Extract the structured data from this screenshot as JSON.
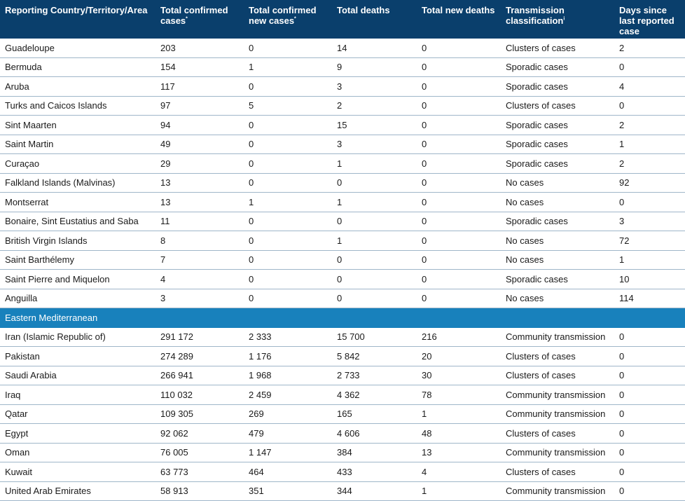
{
  "colors": {
    "header_bg": "#0a3f6c",
    "region_bg": "#1881bc",
    "row_divider": "#9fb6c9"
  },
  "headers": {
    "country": "Reporting Country/Territory/Area",
    "confirmed": "Total confirmed cases",
    "confirmed_mark": "*",
    "new_cases": "Total confirmed new cases",
    "new_cases_mark": "*",
    "deaths": "Total deaths",
    "new_deaths": "Total new deaths",
    "transmission": "Transmission classification",
    "transmission_mark": "i",
    "days": "Days since last reported case"
  },
  "rows": [
    [
      "Guadeloupe",
      "203",
      "0",
      "14",
      "0",
      "Clusters of cases",
      "2"
    ],
    [
      "Bermuda",
      "154",
      "1",
      "9",
      "0",
      "Sporadic cases",
      "0"
    ],
    [
      "Aruba",
      "117",
      "0",
      "3",
      "0",
      "Sporadic cases",
      "4"
    ],
    [
      "Turks and Caicos Islands",
      "97",
      "5",
      "2",
      "0",
      "Clusters of cases",
      "0"
    ],
    [
      "Sint Maarten",
      "94",
      "0",
      "15",
      "0",
      "Sporadic cases",
      "2"
    ],
    [
      "Saint Martin",
      "49",
      "0",
      "3",
      "0",
      "Sporadic cases",
      "1"
    ],
    [
      "Curaçao",
      "29",
      "0",
      "1",
      "0",
      "Sporadic cases",
      "2"
    ],
    [
      "Falkland Islands (Malvinas)",
      "13",
      "0",
      "0",
      "0",
      "No cases",
      "92"
    ],
    [
      "Montserrat",
      "13",
      "1",
      "1",
      "0",
      "No cases",
      "0"
    ],
    [
      "Bonaire, Sint Eustatius and Saba",
      "11",
      "0",
      "0",
      "0",
      "Sporadic cases",
      "3"
    ],
    [
      "British Virgin Islands",
      "8",
      "0",
      "1",
      "0",
      "No cases",
      "72"
    ],
    [
      "Saint Barthélemy",
      "7",
      "0",
      "0",
      "0",
      "No cases",
      "1"
    ],
    [
      "Saint Pierre and Miquelon",
      "4",
      "0",
      "0",
      "0",
      "Sporadic cases",
      "10"
    ],
    [
      "Anguilla",
      "3",
      "0",
      "0",
      "0",
      "No cases",
      "114"
    ],
    [
      "Eastern Mediterranean"
    ],
    [
      "Iran (Islamic Republic of)",
      "291 172",
      "2 333",
      "15 700",
      "216",
      "Community transmission",
      "0"
    ],
    [
      "Pakistan",
      "274 289",
      "1 176",
      "5 842",
      "20",
      "Clusters of cases",
      "0"
    ],
    [
      "Saudi Arabia",
      "266 941",
      "1 968",
      "2 733",
      "30",
      "Clusters of cases",
      "0"
    ],
    [
      "Iraq",
      "110 032",
      "2 459",
      "4 362",
      "78",
      "Community transmission",
      "0"
    ],
    [
      "Qatar",
      "109 305",
      "269",
      "165",
      "1",
      "Community transmission",
      "0"
    ],
    [
      "Egypt",
      "92 062",
      "479",
      "4 606",
      "48",
      "Clusters of cases",
      "0"
    ],
    [
      "Oman",
      "76 005",
      "1 147",
      "384",
      "13",
      "Community transmission",
      "0"
    ],
    [
      "Kuwait",
      "63 773",
      "464",
      "433",
      "4",
      "Clusters of cases",
      "0"
    ],
    [
      "United Arab Emirates",
      "58 913",
      "351",
      "344",
      "1",
      "Community transmission",
      "0"
    ]
  ]
}
